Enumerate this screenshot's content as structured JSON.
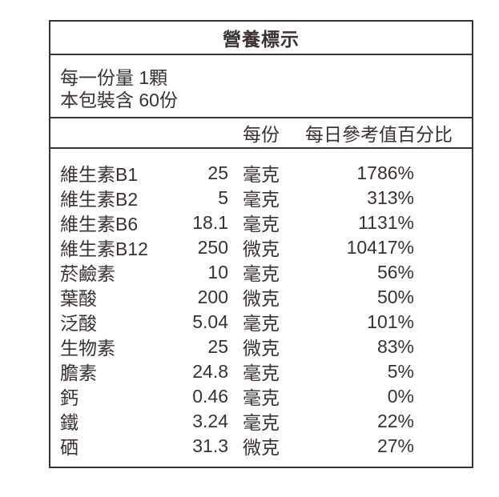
{
  "label": {
    "title": "營養標示",
    "serving": {
      "serving_size_line": "每一份量 1顆",
      "servings_per_package_line": "本包裝含 60份"
    },
    "columns": {
      "per_serving": "每份",
      "daily_value_percent": "每日參考值百分比"
    },
    "rows": [
      {
        "name": "維生素B1",
        "amount": "25",
        "unit": "毫克",
        "dv": "1786%"
      },
      {
        "name": "維生素B2",
        "amount": "5",
        "unit": "毫克",
        "dv": "313%"
      },
      {
        "name": "維生素B6",
        "amount": "18.1",
        "unit": "毫克",
        "dv": "1131%"
      },
      {
        "name": "維生素B12",
        "amount": "250",
        "unit": "微克",
        "dv": "10417%"
      },
      {
        "name": "菸鹼素",
        "amount": "10",
        "unit": "毫克",
        "dv": "56%"
      },
      {
        "name": "葉酸",
        "amount": "200",
        "unit": "微克",
        "dv": "50%"
      },
      {
        "name": "泛酸",
        "amount": "5.04",
        "unit": "毫克",
        "dv": "101%"
      },
      {
        "name": "生物素",
        "amount": "25",
        "unit": "微克",
        "dv": "83%"
      },
      {
        "name": "膽素",
        "amount": "24.8",
        "unit": "毫克",
        "dv": "5%"
      },
      {
        "name": "鈣",
        "amount": "0.46",
        "unit": "毫克",
        "dv": "0%"
      },
      {
        "name": "鐵",
        "amount": "3.24",
        "unit": "毫克",
        "dv": "22%"
      },
      {
        "name": "硒",
        "amount": "31.3",
        "unit": "微克",
        "dv": "27%"
      }
    ],
    "colors": {
      "text": "#3a322f",
      "border": "#3a322f",
      "background": "#ffffff"
    }
  }
}
